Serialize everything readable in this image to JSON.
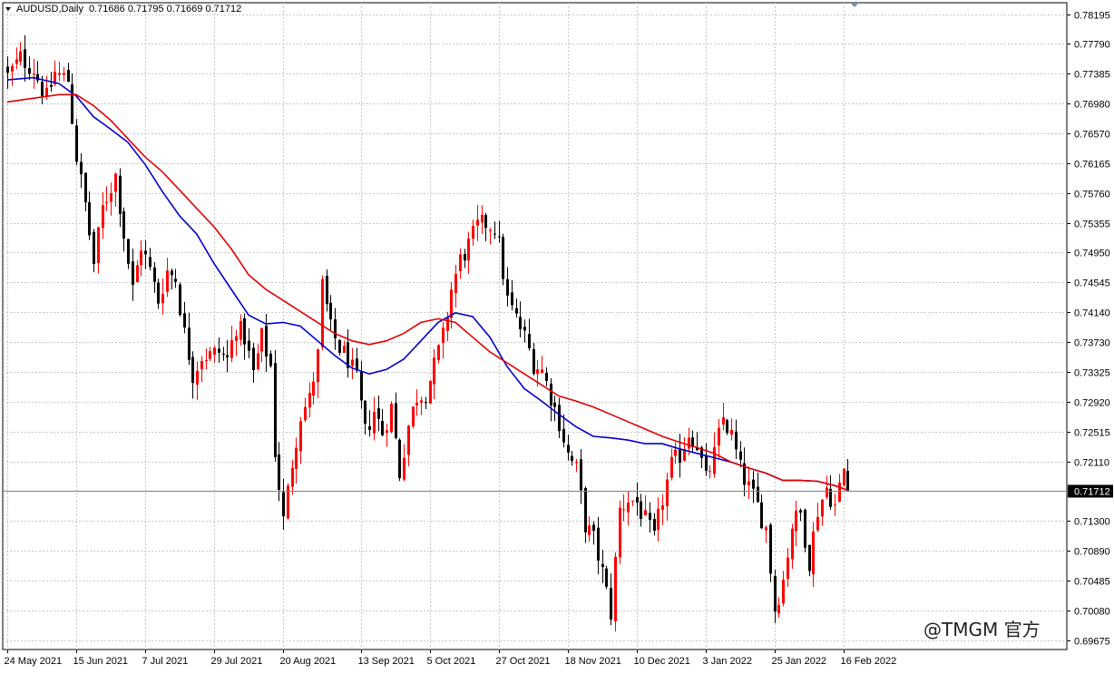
{
  "header": {
    "symbol_label": "AUDUSD,Daily",
    "ohlc_label": "0.71686 0.71795 0.71669 0.71712"
  },
  "watermark": {
    "text": "@TMGM 官方"
  },
  "colors": {
    "bull": "#ff0000",
    "bear": "#000000",
    "ma_fast": "#0000cc",
    "ma_slow": "#e00000",
    "grid": "#c8c8c8",
    "price_line": "#808080",
    "price_tag_bg": "#000000",
    "price_tag_text": "#ffffff"
  },
  "chart_data": {
    "type": "candlestick",
    "symbol": "AUDUSD",
    "timeframe": "Daily",
    "last_price": 0.71712,
    "ylim": [
      0.6955,
      0.7835
    ],
    "grid": true,
    "y_ticks": [
      "0.78195",
      "0.77790",
      "0.77385",
      "0.76980",
      "0.76570",
      "0.76165",
      "0.75760",
      "0.75355",
      "0.74950",
      "0.74545",
      "0.74140",
      "0.73730",
      "0.73325",
      "0.72920",
      "0.72515",
      "0.72110",
      "0.71300",
      "0.70890",
      "0.70485",
      "0.70080",
      "0.69675"
    ],
    "x_ticks": [
      "24 May 2021",
      "15 Jun 2021",
      "7 Jul 2021",
      "29 Jul 2021",
      "20 Aug 2021",
      "13 Sep 2021",
      "5 Oct 2021",
      "27 Oct 2021",
      "18 Nov 2021",
      "10 Dec 2021",
      "3 Jan 2022",
      "25 Jan 2022",
      "16 Feb 2022"
    ],
    "x_tick_index": [
      0,
      16,
      32,
      48,
      64,
      82,
      98,
      114,
      130,
      146,
      162,
      178,
      194
    ],
    "close_path": [
      [
        0,
        0.7735
      ],
      [
        3,
        0.776
      ],
      [
        6,
        0.7745
      ],
      [
        9,
        0.7705
      ],
      [
        11,
        0.774
      ],
      [
        14,
        0.773
      ],
      [
        16,
        0.7625
      ],
      [
        18,
        0.756
      ],
      [
        20,
        0.748
      ],
      [
        22,
        0.7555
      ],
      [
        25,
        0.76
      ],
      [
        27,
        0.752
      ],
      [
        29,
        0.7445
      ],
      [
        31,
        0.7505
      ],
      [
        33,
        0.747
      ],
      [
        35,
        0.743
      ],
      [
        37,
        0.747
      ],
      [
        39,
        0.746
      ],
      [
        41,
        0.7385
      ],
      [
        43,
        0.733
      ],
      [
        45,
        0.7355
      ],
      [
        47,
        0.7355
      ],
      [
        49,
        0.736
      ],
      [
        51,
        0.735
      ],
      [
        53,
        0.7395
      ],
      [
        55,
        0.738
      ],
      [
        57,
        0.733
      ],
      [
        59,
        0.738
      ],
      [
        61,
        0.734
      ],
      [
        62,
        0.7225
      ],
      [
        64,
        0.713
      ],
      [
        66,
        0.721
      ],
      [
        68,
        0.7275
      ],
      [
        70,
        0.7295
      ],
      [
        72,
        0.7355
      ],
      [
        73,
        0.745
      ],
      [
        75,
        0.739
      ],
      [
        77,
        0.7365
      ],
      [
        79,
        0.735
      ],
      [
        81,
        0.732
      ],
      [
        83,
        0.725
      ],
      [
        85,
        0.728
      ],
      [
        87,
        0.725
      ],
      [
        89,
        0.7285
      ],
      [
        91,
        0.7195
      ],
      [
        93,
        0.726
      ],
      [
        95,
        0.73
      ],
      [
        97,
        0.7305
      ],
      [
        99,
        0.734
      ],
      [
        101,
        0.738
      ],
      [
        103,
        0.7445
      ],
      [
        105,
        0.7485
      ],
      [
        107,
        0.7505
      ],
      [
        109,
        0.753
      ],
      [
        111,
        0.7535
      ],
      [
        113,
        0.753
      ],
      [
        114,
        0.7505
      ],
      [
        116,
        0.743
      ],
      [
        118,
        0.7405
      ],
      [
        120,
        0.738
      ],
      [
        122,
        0.7345
      ],
      [
        124,
        0.7335
      ],
      [
        126,
        0.73
      ],
      [
        128,
        0.7265
      ],
      [
        130,
        0.722
      ],
      [
        132,
        0.72
      ],
      [
        134,
        0.7125
      ],
      [
        136,
        0.7105
      ],
      [
        138,
        0.706
      ],
      [
        140,
        0.7005
      ],
      [
        142,
        0.7145
      ],
      [
        144,
        0.716
      ],
      [
        146,
        0.7155
      ],
      [
        148,
        0.713
      ],
      [
        150,
        0.7105
      ],
      [
        152,
        0.716
      ],
      [
        154,
        0.7205
      ],
      [
        156,
        0.722
      ],
      [
        158,
        0.725
      ],
      [
        160,
        0.7235
      ],
      [
        162,
        0.7185
      ],
      [
        164,
        0.722
      ],
      [
        166,
        0.727
      ],
      [
        168,
        0.7245
      ],
      [
        170,
        0.72
      ],
      [
        172,
        0.7175
      ],
      [
        174,
        0.715
      ],
      [
        176,
        0.712
      ],
      [
        178,
        0.701
      ],
      [
        180,
        0.705
      ],
      [
        182,
        0.7125
      ],
      [
        184,
        0.714
      ],
      [
        186,
        0.7075
      ],
      [
        188,
        0.7145
      ],
      [
        190,
        0.7175
      ],
      [
        192,
        0.715
      ],
      [
        194,
        0.72
      ],
      [
        195,
        0.7171
      ]
    ],
    "series": [
      {
        "name": "",
        "color": "#0000cc",
        "points": [
          [
            0,
            0.773
          ],
          [
            6,
            0.7733
          ],
          [
            12,
            0.7725
          ],
          [
            16,
            0.7708
          ],
          [
            20,
            0.768
          ],
          [
            24,
            0.7663
          ],
          [
            28,
            0.7645
          ],
          [
            32,
            0.7615
          ],
          [
            36,
            0.7578
          ],
          [
            40,
            0.7545
          ],
          [
            44,
            0.752
          ],
          [
            48,
            0.748
          ],
          [
            52,
            0.7445
          ],
          [
            56,
            0.741
          ],
          [
            60,
            0.7398
          ],
          [
            64,
            0.74
          ],
          [
            68,
            0.7395
          ],
          [
            72,
            0.7375
          ],
          [
            76,
            0.7355
          ],
          [
            80,
            0.7338
          ],
          [
            84,
            0.733
          ],
          [
            88,
            0.7336
          ],
          [
            92,
            0.735
          ],
          [
            96,
            0.7375
          ],
          [
            100,
            0.74
          ],
          [
            104,
            0.7413
          ],
          [
            108,
            0.7408
          ],
          [
            112,
            0.738
          ],
          [
            116,
            0.734
          ],
          [
            120,
            0.731
          ],
          [
            124,
            0.7293
          ],
          [
            128,
            0.7275
          ],
          [
            132,
            0.7258
          ],
          [
            136,
            0.7245
          ],
          [
            140,
            0.7243
          ],
          [
            144,
            0.724
          ],
          [
            148,
            0.7235
          ],
          [
            152,
            0.7235
          ],
          [
            156,
            0.7228
          ],
          [
            160,
            0.7222
          ],
          [
            164,
            0.7216
          ],
          [
            168,
            0.721
          ],
          [
            172,
            0.7202
          ],
          [
            176,
            0.7195
          ],
          [
            180,
            0.7185
          ],
          [
            184,
            0.7185
          ],
          [
            188,
            0.7184
          ],
          [
            192,
            0.7178
          ],
          [
            195,
            0.7172
          ]
        ]
      },
      {
        "name": "",
        "color": "#e00000",
        "points": [
          [
            0,
            0.77
          ],
          [
            6,
            0.7705
          ],
          [
            12,
            0.771
          ],
          [
            16,
            0.771
          ],
          [
            20,
            0.7695
          ],
          [
            24,
            0.7675
          ],
          [
            28,
            0.765
          ],
          [
            32,
            0.7625
          ],
          [
            36,
            0.7605
          ],
          [
            40,
            0.758
          ],
          [
            44,
            0.7555
          ],
          [
            48,
            0.753
          ],
          [
            52,
            0.75
          ],
          [
            56,
            0.7465
          ],
          [
            60,
            0.7445
          ],
          [
            64,
            0.743
          ],
          [
            68,
            0.7415
          ],
          [
            72,
            0.74
          ],
          [
            76,
            0.7385
          ],
          [
            80,
            0.7375
          ],
          [
            84,
            0.737
          ],
          [
            88,
            0.7375
          ],
          [
            92,
            0.7385
          ],
          [
            96,
            0.74
          ],
          [
            100,
            0.7405
          ],
          [
            104,
            0.74
          ],
          [
            108,
            0.738
          ],
          [
            112,
            0.736
          ],
          [
            116,
            0.7345
          ],
          [
            120,
            0.733
          ],
          [
            124,
            0.7315
          ],
          [
            128,
            0.73
          ],
          [
            132,
            0.7293
          ],
          [
            136,
            0.7285
          ],
          [
            140,
            0.7275
          ],
          [
            144,
            0.7265
          ],
          [
            148,
            0.7255
          ],
          [
            152,
            0.7245
          ],
          [
            156,
            0.7237
          ],
          [
            160,
            0.723
          ],
          [
            164,
            0.7222
          ],
          [
            168,
            0.721
          ],
          [
            172,
            0.7202
          ],
          [
            176,
            0.7195
          ],
          [
            180,
            0.7185
          ],
          [
            184,
            0.7185
          ],
          [
            188,
            0.7184
          ],
          [
            192,
            0.7178
          ],
          [
            195,
            0.7172
          ]
        ]
      }
    ]
  }
}
